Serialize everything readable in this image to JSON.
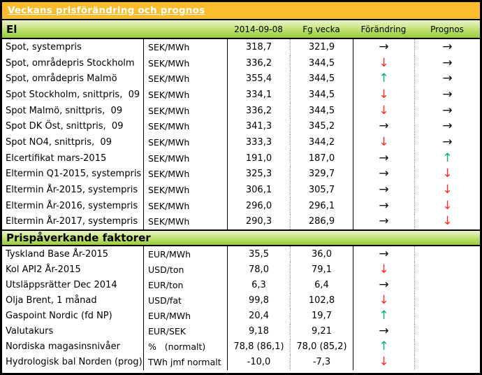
{
  "title": "Veckans prisförändring och prognos",
  "columns": {
    "date": "2014-09-08",
    "prev_week": "Fg vecka",
    "change": "Förändring",
    "forecast": "Prognos"
  },
  "arrow_glyphs": {
    "right": "→",
    "down": "↓",
    "up": "↑",
    "none": ""
  },
  "colors": {
    "title_band": "#fbbd2c",
    "section_band_green": "#98cc38",
    "arrow_right": "#111111",
    "arrow_down": "#ff2b2b",
    "arrow_up": "#00b377"
  },
  "sections": [
    {
      "title": "El",
      "rows": [
        {
          "label": "Spot, systempris",
          "unit": "SEK/MWh",
          "current": "318,7",
          "previous": "321,9",
          "change": "right",
          "forecast": "right"
        },
        {
          "label": "Spot, områdepris Stockholm",
          "unit": "SEK/MWh",
          "current": "336,2",
          "previous": "344,5",
          "change": "down",
          "forecast": "right"
        },
        {
          "label": "Spot, områdepris Malmö",
          "unit": "SEK/MWh",
          "current": "355,4",
          "previous": "344,5",
          "change": "up",
          "forecast": "right"
        },
        {
          "label": "Spot Stockholm, snittpris,  09",
          "unit": "SEK/MWh",
          "current": "334,1",
          "previous": "344,5",
          "change": "down",
          "forecast": "right"
        },
        {
          "label": "Spot Malmö, snittpris,  09",
          "unit": "SEK/MWh",
          "current": "336,2",
          "previous": "344,5",
          "change": "down",
          "forecast": "right"
        },
        {
          "label": "Spot DK Öst, snittpris,  09",
          "unit": "SEK/MWh",
          "current": "341,3",
          "previous": "345,2",
          "change": "right",
          "forecast": "right"
        },
        {
          "label": "Spot NO4, snittpris,  09",
          "unit": "SEK/MWh",
          "current": "333,3",
          "previous": "344,2",
          "change": "down",
          "forecast": "right"
        },
        {
          "label": "Elcertifikat mars-2015",
          "unit": "SEK/MWh",
          "current": "191,0",
          "previous": "187,0",
          "change": "right",
          "forecast": "up"
        },
        {
          "label": "Eltermin Q1-2015, systempris",
          "unit": "SEK/MWh",
          "current": "325,3",
          "previous": "329,7",
          "change": "right",
          "forecast": "down"
        },
        {
          "label": "Eltermin År-2015, systempris",
          "unit": "SEK/MWh",
          "current": "306,1",
          "previous": "305,7",
          "change": "right",
          "forecast": "down"
        },
        {
          "label": "Eltermin År-2016, systempris",
          "unit": "SEK/MWh",
          "current": "296,0",
          "previous": "296,1",
          "change": "right",
          "forecast": "down"
        },
        {
          "label": "Eltermin År-2017, systempris",
          "unit": "SEK/MWh",
          "current": "290,3",
          "previous": "286,9",
          "change": "right",
          "forecast": "down"
        }
      ]
    },
    {
      "title": "Prispåverkande faktorer",
      "rows": [
        {
          "label": "Tyskland Base År-2015",
          "unit": "EUR/MWh",
          "current": "35,5",
          "previous": "36,0",
          "change": "right",
          "forecast": "none"
        },
        {
          "label": "Kol API2 År-2015",
          "unit": "USD/ton",
          "current": "78,0",
          "previous": "79,1",
          "change": "down",
          "forecast": "none"
        },
        {
          "label": "Utsläppsrätter Dec 2014",
          "unit": "EUR/ton",
          "current": "6,3",
          "previous": "6,4",
          "change": "right",
          "forecast": "none"
        },
        {
          "label": "Olja Brent, 1 månad",
          "unit": "USD/fat",
          "current": "99,8",
          "previous": "102,8",
          "change": "down",
          "forecast": "none"
        },
        {
          "label": "Gaspoint Nordic (fd NP)",
          "unit": "EUR/MWh",
          "current": "20,4",
          "previous": "19,7",
          "change": "up",
          "forecast": "none"
        },
        {
          "label": "Valutakurs",
          "unit": "EUR/SEK",
          "current": "9,18",
          "previous": "9,21",
          "change": "right",
          "forecast": "none"
        },
        {
          "label": "Nordiska magasinsnivåer",
          "unit": "%   (normalt)",
          "current": "78,8 (86,1)",
          "previous": "78,0 (85,2)",
          "change": "up",
          "forecast": "none"
        },
        {
          "label": "Hydrologisk bal Norden (prog)",
          "unit": "TWh jmf normalt",
          "current": "-10,0",
          "previous": "-7,3",
          "change": "down",
          "forecast": "none"
        }
      ]
    }
  ]
}
